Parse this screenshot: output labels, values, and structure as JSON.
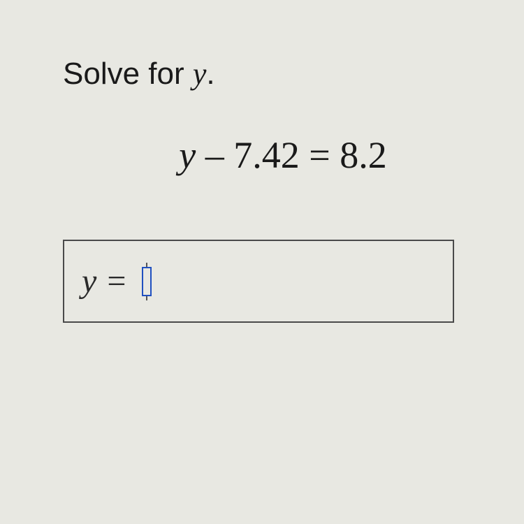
{
  "prompt": {
    "text_before": "Solve for ",
    "variable": "y",
    "text_after": "."
  },
  "equation": {
    "variable": "y",
    "operator": " – ",
    "left_value": "7.42",
    "equals": " = ",
    "right_value": "8.2"
  },
  "answer": {
    "variable": "y",
    "equals": "="
  },
  "colors": {
    "background": "#e8e8e2",
    "text": "#1a1a1a",
    "box_border": "#4a4a4a",
    "cursor_border": "#2050c0"
  },
  "typography": {
    "prompt_fontsize": 44,
    "equation_fontsize": 54,
    "answer_fontsize": 48,
    "prompt_font": "Verdana",
    "math_font": "Times New Roman"
  }
}
